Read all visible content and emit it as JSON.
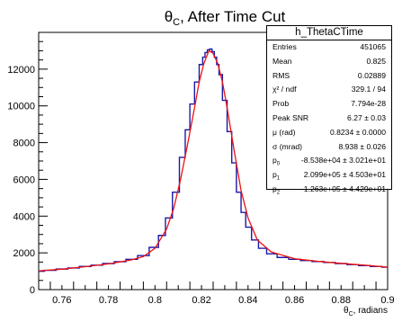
{
  "chart_data": {
    "type": "line",
    "title": "θ",
    "title_sub": "C",
    "title_suffix": ", After Time Cut",
    "xlabel": "θ",
    "xlabel_sub": "C",
    "xlabel_suffix": ", radians",
    "ylabel": "",
    "xlim": [
      0.75,
      0.9
    ],
    "ylim": [
      0,
      14000
    ],
    "x_ticks": [
      "0.76",
      "0.78",
      "0.8",
      "0.82",
      "0.84",
      "0.86",
      "0.88",
      "0.9"
    ],
    "y_ticks": [
      "0",
      "2000",
      "4000",
      "6000",
      "8000",
      "10000",
      "12000"
    ],
    "grid": false,
    "series": [
      {
        "kind": "histogram",
        "color": "#1a1aa8",
        "x": [
          0.75,
          0.755,
          0.76,
          0.765,
          0.77,
          0.775,
          0.78,
          0.785,
          0.79,
          0.795,
          0.8,
          0.803,
          0.806,
          0.809,
          0.812,
          0.814,
          0.816,
          0.818,
          0.82,
          0.821,
          0.822,
          0.823,
          0.824,
          0.825,
          0.826,
          0.827,
          0.828,
          0.83,
          0.832,
          0.834,
          0.836,
          0.838,
          0.84,
          0.843,
          0.846,
          0.85,
          0.855,
          0.86,
          0.865,
          0.87,
          0.875,
          0.88,
          0.885,
          0.89,
          0.895,
          0.9
        ],
        "y": [
          1000,
          1050,
          1120,
          1180,
          1260,
          1330,
          1420,
          1520,
          1650,
          1850,
          2300,
          2950,
          3900,
          5300,
          7200,
          8700,
          10100,
          11300,
          12250,
          12650,
          12900,
          13050,
          13100,
          12950,
          12650,
          12250,
          11700,
          10300,
          8600,
          6900,
          5300,
          4200,
          3400,
          2700,
          2250,
          1950,
          1750,
          1650,
          1580,
          1530,
          1480,
          1420,
          1360,
          1310,
          1260,
          1220
        ]
      },
      {
        "kind": "fit",
        "color": "#ee1111",
        "x": [
          0.75,
          0.76,
          0.77,
          0.78,
          0.79,
          0.795,
          0.8,
          0.805,
          0.808,
          0.811,
          0.814,
          0.817,
          0.819,
          0.821,
          0.823,
          0.8234,
          0.825,
          0.827,
          0.829,
          0.831,
          0.834,
          0.837,
          0.84,
          0.844,
          0.85,
          0.86,
          0.87,
          0.88,
          0.89,
          0.9
        ],
        "y": [
          1020,
          1110,
          1250,
          1400,
          1620,
          1800,
          2250,
          3300,
          4400,
          6000,
          7900,
          9900,
          11300,
          12300,
          12950,
          13000,
          12850,
          12300,
          11300,
          9900,
          7600,
          5400,
          3900,
          2700,
          2050,
          1680,
          1540,
          1430,
          1330,
          1220
        ]
      }
    ]
  },
  "stats": {
    "title": "h_ThetaCTime",
    "rows": [
      {
        "label": "Entries",
        "value": "451065"
      },
      {
        "label": "Mean",
        "value": "0.825"
      },
      {
        "label": "RMS",
        "value": "0.02889"
      },
      {
        "label": "χ² / ndf",
        "value": "329.1 / 94"
      },
      {
        "label": "Prob",
        "value": "7.794e-28"
      },
      {
        "label": "Peak SNR",
        "value": "6.27 ± 0.03"
      },
      {
        "label": "μ (rad)",
        "value": "0.8234 ± 0.0000"
      },
      {
        "label": "σ (mrad)",
        "value": "8.938 ± 0.026"
      },
      {
        "label": "p",
        "sub": "0",
        "value": "-8.538e+04 ± 3.021e+01"
      },
      {
        "label": "p",
        "sub": "1",
        "value": "2.099e+05 ± 4.503e+01"
      },
      {
        "label": "p",
        "sub": "2",
        "value": "-1.263e+05 ± 4.429e+01"
      }
    ]
  }
}
